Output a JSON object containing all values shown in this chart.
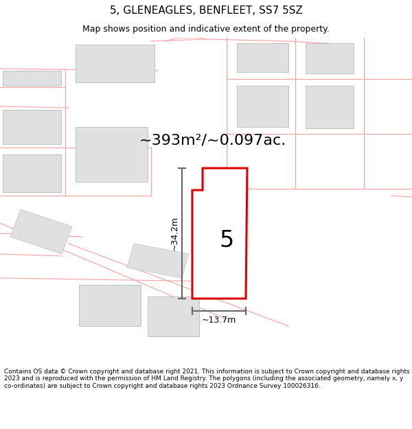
{
  "title_line1": "5, GLENEAGLES, BENFLEET, SS7 5SZ",
  "title_line2": "Map shows position and indicative extent of the property.",
  "area_label": "~393m²/~0.097ac.",
  "dim_height": "~34.2m",
  "dim_width": "~13.7m",
  "number_label": "5",
  "footer": "Contains OS data © Crown copyright and database right 2021. This information is subject to Crown copyright and database rights 2023 and is reproduced with the permission of HM Land Registry. The polygons (including the associated geometry, namely x, y co-ordinates) are subject to Crown copyright and database rights 2023 Ordnance Survey 100026316.",
  "background_color": "#ffffff",
  "map_bg_color": "#ffffff",
  "plot_fill_color": "#e0e0e0",
  "boundary_color": "#f4a0a0",
  "highlight_color": "#dd0000",
  "dim_line_color": "#666666",
  "text_color": "#000000",
  "title_fontsize": 11,
  "subtitle_fontsize": 9,
  "area_fontsize": 16,
  "dim_fontsize": 9,
  "number_fontsize": 24,
  "footer_fontsize": 6.5
}
